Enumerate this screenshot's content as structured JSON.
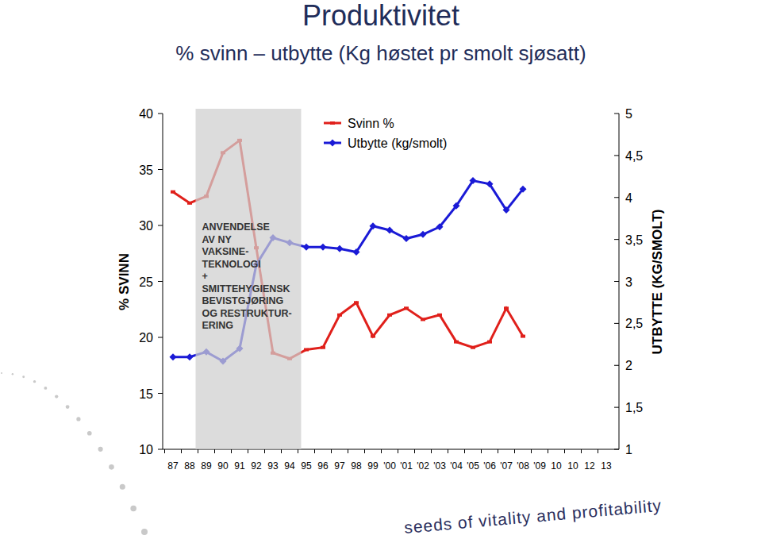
{
  "chart_data": {
    "type": "line",
    "title": "Produktivitet",
    "subtitle": "% svinn – utbytte (Kg høstet pr smolt sjøsatt)",
    "ylabel": "% SVINN",
    "y2label": "UTBYTTE (KG/SMOLT)",
    "footer": "seeds of vitality and profitability",
    "categories": [
      "87",
      "88",
      "89",
      "90",
      "91",
      "92",
      "93",
      "94",
      "95",
      "96",
      "97",
      "98",
      "99",
      "'00",
      "'01",
      "'02",
      "'03",
      "'04",
      "'05",
      "'06",
      "'07",
      "'08",
      "'09",
      "10",
      "10",
      "12",
      "13"
    ],
    "ylim": [
      10,
      40
    ],
    "yticks": [
      10,
      15,
      20,
      25,
      30,
      35,
      40
    ],
    "y2lim": [
      1,
      5
    ],
    "y2ticks": [
      1,
      {
        "value": 1.5,
        "label": "1,5"
      },
      2,
      {
        "value": 2.5,
        "label": "2,5"
      },
      3,
      {
        "value": 3.5,
        "label": "3,5"
      },
      4,
      {
        "value": 4.5,
        "label": "4,5"
      },
      5
    ],
    "grid": false,
    "legend": "top",
    "annotations": [
      {
        "lines": [
          "ANVENDELSE",
          "AV NY",
          "VAKSINE-",
          "TEKNOLOGI",
          "+",
          "SMITTEHYGIENSK",
          "BEVISTGJØRING",
          "OG RESTRUKTUR-",
          "ERING"
        ],
        "x_from": "89",
        "x_to": "94"
      }
    ],
    "series": [
      {
        "name": "Svinn %",
        "color": "#e0201b",
        "marker": "square",
        "axis": "y",
        "values": [
          33,
          32,
          32.6,
          36.5,
          37.6,
          28,
          18.6,
          18.1,
          18.9,
          19.1,
          22,
          23.1,
          20.1,
          22,
          22.6,
          21.6,
          22,
          19.6,
          19.1,
          19.6,
          22.6,
          20.1,
          null,
          null,
          null,
          null,
          null
        ]
      },
      {
        "name": "Utbytte (kg/smolt)",
        "color": "#1a1ad6",
        "marker": "diamond",
        "axis": "y2",
        "values": [
          2.1,
          2.1,
          2.16,
          2.05,
          2.2,
          3.2,
          3.52,
          3.46,
          3.41,
          3.41,
          3.39,
          3.35,
          3.66,
          3.61,
          3.51,
          3.56,
          3.65,
          3.9,
          4.2,
          4.16,
          3.85,
          4.1,
          null,
          null,
          null,
          null,
          null
        ]
      }
    ]
  }
}
